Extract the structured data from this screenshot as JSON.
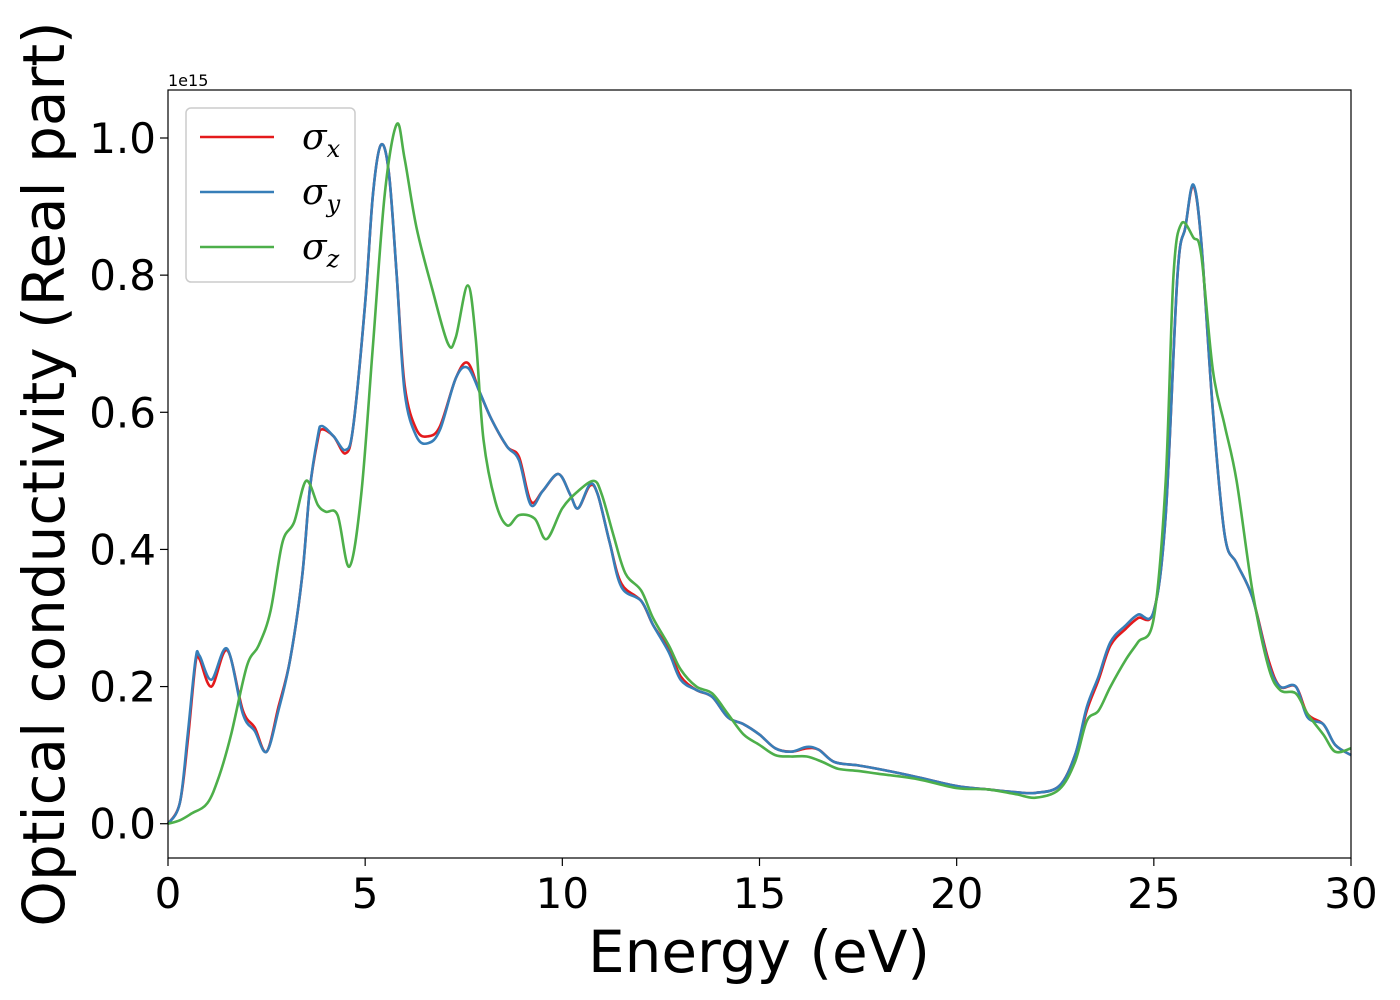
{
  "chart_data": {
    "type": "line",
    "xlabel": "Energy (eV)",
    "ylabel": "Optical conductivity (Real part)",
    "y_offset_label": "1e15",
    "xlim": [
      0,
      30
    ],
    "ylim": [
      -0.05,
      1.07
    ],
    "x_ticks": [
      0,
      5,
      10,
      15,
      20,
      25,
      30
    ],
    "x_tick_labels": [
      "0",
      "5",
      "10",
      "15",
      "20",
      "25",
      "30"
    ],
    "y_ticks": [
      0.0,
      0.2,
      0.4,
      0.6,
      0.8,
      1.0
    ],
    "y_tick_labels": [
      "0.0",
      "0.2",
      "0.4",
      "0.6",
      "0.8",
      "1.0"
    ],
    "grid": false,
    "legend_position": "top-left",
    "series": [
      {
        "name": "σx",
        "symbol": "σ",
        "subscript": "x",
        "color": "#e41a1c",
        "points": [
          [
            0,
            0
          ],
          [
            0.3,
            0.03
          ],
          [
            0.5,
            0.12
          ],
          [
            0.7,
            0.235
          ],
          [
            0.8,
            0.24
          ],
          [
            1.1,
            0.2
          ],
          [
            1.5,
            0.253
          ],
          [
            1.9,
            0.165
          ],
          [
            2.2,
            0.14
          ],
          [
            2.5,
            0.105
          ],
          [
            2.8,
            0.17
          ],
          [
            3.1,
            0.24
          ],
          [
            3.4,
            0.36
          ],
          [
            3.6,
            0.49
          ],
          [
            3.8,
            0.56
          ],
          [
            3.9,
            0.575
          ],
          [
            4.2,
            0.565
          ],
          [
            4.5,
            0.54
          ],
          [
            4.7,
            0.58
          ],
          [
            5.0,
            0.76
          ],
          [
            5.2,
            0.92
          ],
          [
            5.4,
            0.99
          ],
          [
            5.6,
            0.95
          ],
          [
            5.8,
            0.8
          ],
          [
            6.0,
            0.64
          ],
          [
            6.3,
            0.575
          ],
          [
            6.6,
            0.565
          ],
          [
            6.9,
            0.58
          ],
          [
            7.3,
            0.65
          ],
          [
            7.6,
            0.672
          ],
          [
            7.9,
            0.63
          ],
          [
            8.2,
            0.59
          ],
          [
            8.6,
            0.55
          ],
          [
            8.9,
            0.535
          ],
          [
            9.2,
            0.47
          ],
          [
            9.5,
            0.485
          ],
          [
            9.9,
            0.51
          ],
          [
            10.2,
            0.48
          ],
          [
            10.4,
            0.46
          ],
          [
            10.7,
            0.493
          ],
          [
            10.9,
            0.48
          ],
          [
            11.2,
            0.41
          ],
          [
            11.5,
            0.35
          ],
          [
            12.0,
            0.325
          ],
          [
            12.3,
            0.29
          ],
          [
            12.7,
            0.255
          ],
          [
            13.0,
            0.215
          ],
          [
            13.4,
            0.195
          ],
          [
            13.8,
            0.185
          ],
          [
            14.2,
            0.155
          ],
          [
            14.6,
            0.145
          ],
          [
            15.0,
            0.13
          ],
          [
            15.4,
            0.11
          ],
          [
            15.8,
            0.105
          ],
          [
            16.2,
            0.11
          ],
          [
            16.5,
            0.108
          ],
          [
            16.9,
            0.09
          ],
          [
            17.5,
            0.085
          ],
          [
            18.0,
            0.08
          ],
          [
            19.0,
            0.068
          ],
          [
            20.0,
            0.055
          ],
          [
            20.8,
            0.05
          ],
          [
            21.5,
            0.046
          ],
          [
            22.0,
            0.045
          ],
          [
            22.6,
            0.055
          ],
          [
            23.0,
            0.1
          ],
          [
            23.3,
            0.165
          ],
          [
            23.6,
            0.21
          ],
          [
            23.9,
            0.26
          ],
          [
            24.3,
            0.285
          ],
          [
            24.6,
            0.3
          ],
          [
            25.0,
            0.31
          ],
          [
            25.3,
            0.45
          ],
          [
            25.6,
            0.8
          ],
          [
            25.8,
            0.87
          ],
          [
            26.0,
            0.93
          ],
          [
            26.2,
            0.85
          ],
          [
            26.5,
            0.6
          ],
          [
            26.8,
            0.42
          ],
          [
            27.1,
            0.38
          ],
          [
            27.5,
            0.33
          ],
          [
            27.9,
            0.24
          ],
          [
            28.2,
            0.2
          ],
          [
            28.6,
            0.2
          ],
          [
            28.9,
            0.16
          ],
          [
            29.3,
            0.145
          ],
          [
            29.6,
            0.115
          ],
          [
            30.0,
            0.1
          ]
        ]
      },
      {
        "name": "σy",
        "symbol": "σ",
        "subscript": "y",
        "color": "#377eb8",
        "points": [
          [
            0,
            0
          ],
          [
            0.3,
            0.03
          ],
          [
            0.5,
            0.13
          ],
          [
            0.7,
            0.24
          ],
          [
            0.8,
            0.245
          ],
          [
            1.1,
            0.21
          ],
          [
            1.5,
            0.255
          ],
          [
            1.9,
            0.16
          ],
          [
            2.2,
            0.135
          ],
          [
            2.5,
            0.105
          ],
          [
            2.8,
            0.165
          ],
          [
            3.1,
            0.24
          ],
          [
            3.4,
            0.36
          ],
          [
            3.6,
            0.49
          ],
          [
            3.8,
            0.565
          ],
          [
            3.9,
            0.58
          ],
          [
            4.2,
            0.565
          ],
          [
            4.5,
            0.545
          ],
          [
            4.7,
            0.58
          ],
          [
            5.0,
            0.76
          ],
          [
            5.2,
            0.92
          ],
          [
            5.4,
            0.99
          ],
          [
            5.6,
            0.95
          ],
          [
            5.8,
            0.8
          ],
          [
            6.0,
            0.63
          ],
          [
            6.3,
            0.565
          ],
          [
            6.6,
            0.555
          ],
          [
            6.9,
            0.575
          ],
          [
            7.3,
            0.65
          ],
          [
            7.6,
            0.665
          ],
          [
            7.9,
            0.63
          ],
          [
            8.2,
            0.59
          ],
          [
            8.6,
            0.55
          ],
          [
            8.9,
            0.53
          ],
          [
            9.2,
            0.465
          ],
          [
            9.5,
            0.485
          ],
          [
            9.9,
            0.51
          ],
          [
            10.2,
            0.48
          ],
          [
            10.4,
            0.46
          ],
          [
            10.7,
            0.495
          ],
          [
            10.9,
            0.48
          ],
          [
            11.2,
            0.41
          ],
          [
            11.5,
            0.345
          ],
          [
            12.0,
            0.325
          ],
          [
            12.3,
            0.29
          ],
          [
            12.7,
            0.25
          ],
          [
            13.0,
            0.21
          ],
          [
            13.4,
            0.195
          ],
          [
            13.8,
            0.185
          ],
          [
            14.2,
            0.155
          ],
          [
            14.6,
            0.145
          ],
          [
            15.0,
            0.13
          ],
          [
            15.4,
            0.11
          ],
          [
            15.8,
            0.105
          ],
          [
            16.2,
            0.112
          ],
          [
            16.5,
            0.108
          ],
          [
            16.9,
            0.09
          ],
          [
            17.5,
            0.085
          ],
          [
            18.0,
            0.08
          ],
          [
            19.0,
            0.068
          ],
          [
            20.0,
            0.055
          ],
          [
            20.8,
            0.05
          ],
          [
            21.5,
            0.046
          ],
          [
            22.0,
            0.045
          ],
          [
            22.6,
            0.055
          ],
          [
            23.0,
            0.1
          ],
          [
            23.3,
            0.17
          ],
          [
            23.6,
            0.215
          ],
          [
            23.9,
            0.265
          ],
          [
            24.3,
            0.29
          ],
          [
            24.6,
            0.305
          ],
          [
            25.0,
            0.31
          ],
          [
            25.3,
            0.45
          ],
          [
            25.6,
            0.8
          ],
          [
            25.8,
            0.87
          ],
          [
            26.0,
            0.932
          ],
          [
            26.2,
            0.85
          ],
          [
            26.5,
            0.6
          ],
          [
            26.8,
            0.42
          ],
          [
            27.1,
            0.38
          ],
          [
            27.5,
            0.33
          ],
          [
            27.9,
            0.235
          ],
          [
            28.2,
            0.2
          ],
          [
            28.6,
            0.2
          ],
          [
            28.9,
            0.155
          ],
          [
            29.3,
            0.145
          ],
          [
            29.6,
            0.115
          ],
          [
            30.0,
            0.1
          ]
        ]
      },
      {
        "name": "σz",
        "symbol": "σ",
        "subscript": "z",
        "color": "#4daf4a",
        "points": [
          [
            0,
            0
          ],
          [
            0.3,
            0.005
          ],
          [
            0.6,
            0.015
          ],
          [
            1.0,
            0.03
          ],
          [
            1.3,
            0.07
          ],
          [
            1.6,
            0.13
          ],
          [
            2.0,
            0.23
          ],
          [
            2.3,
            0.26
          ],
          [
            2.6,
            0.31
          ],
          [
            2.9,
            0.41
          ],
          [
            3.2,
            0.44
          ],
          [
            3.5,
            0.5
          ],
          [
            3.8,
            0.465
          ],
          [
            4.0,
            0.455
          ],
          [
            4.3,
            0.45
          ],
          [
            4.6,
            0.375
          ],
          [
            4.9,
            0.48
          ],
          [
            5.2,
            0.7
          ],
          [
            5.5,
            0.92
          ],
          [
            5.8,
            1.02
          ],
          [
            6.0,
            0.97
          ],
          [
            6.3,
            0.87
          ],
          [
            6.7,
            0.78
          ],
          [
            7.1,
            0.7
          ],
          [
            7.3,
            0.71
          ],
          [
            7.6,
            0.785
          ],
          [
            7.8,
            0.71
          ],
          [
            8.0,
            0.56
          ],
          [
            8.3,
            0.47
          ],
          [
            8.6,
            0.435
          ],
          [
            8.9,
            0.45
          ],
          [
            9.3,
            0.445
          ],
          [
            9.6,
            0.415
          ],
          [
            10.0,
            0.46
          ],
          [
            10.4,
            0.485
          ],
          [
            10.8,
            0.5
          ],
          [
            11.0,
            0.48
          ],
          [
            11.3,
            0.42
          ],
          [
            11.6,
            0.365
          ],
          [
            12.0,
            0.34
          ],
          [
            12.3,
            0.3
          ],
          [
            12.7,
            0.26
          ],
          [
            13.0,
            0.225
          ],
          [
            13.4,
            0.2
          ],
          [
            13.8,
            0.19
          ],
          [
            14.2,
            0.16
          ],
          [
            14.6,
            0.13
          ],
          [
            15.0,
            0.115
          ],
          [
            15.4,
            0.1
          ],
          [
            15.8,
            0.098
          ],
          [
            16.2,
            0.098
          ],
          [
            16.6,
            0.09
          ],
          [
            17.0,
            0.08
          ],
          [
            17.5,
            0.077
          ],
          [
            18.0,
            0.073
          ],
          [
            19.0,
            0.065
          ],
          [
            20.0,
            0.052
          ],
          [
            20.8,
            0.05
          ],
          [
            21.5,
            0.043
          ],
          [
            22.0,
            0.038
          ],
          [
            22.6,
            0.05
          ],
          [
            23.0,
            0.09
          ],
          [
            23.3,
            0.15
          ],
          [
            23.6,
            0.165
          ],
          [
            23.9,
            0.2
          ],
          [
            24.3,
            0.24
          ],
          [
            24.6,
            0.265
          ],
          [
            25.0,
            0.3
          ],
          [
            25.3,
            0.5
          ],
          [
            25.5,
            0.8
          ],
          [
            25.7,
            0.875
          ],
          [
            26.0,
            0.855
          ],
          [
            26.2,
            0.83
          ],
          [
            26.5,
            0.66
          ],
          [
            26.8,
            0.58
          ],
          [
            27.1,
            0.5
          ],
          [
            27.5,
            0.34
          ],
          [
            27.9,
            0.23
          ],
          [
            28.2,
            0.195
          ],
          [
            28.6,
            0.19
          ],
          [
            28.9,
            0.16
          ],
          [
            29.3,
            0.13
          ],
          [
            29.6,
            0.105
          ],
          [
            30.0,
            0.11
          ]
        ]
      }
    ]
  }
}
